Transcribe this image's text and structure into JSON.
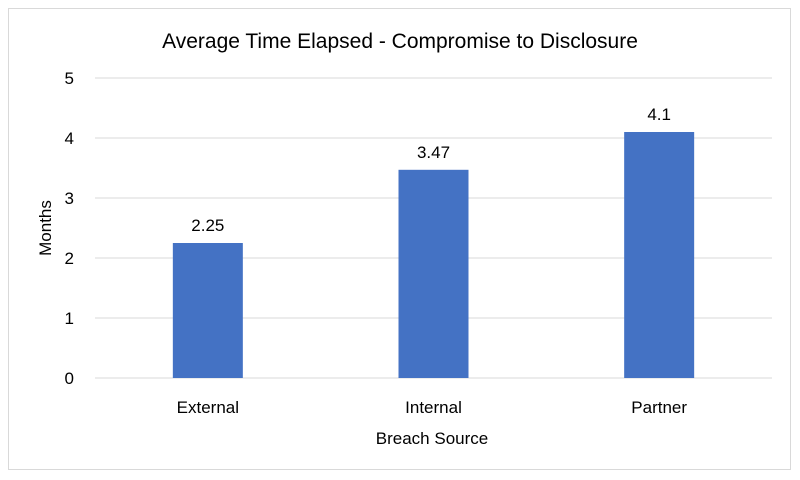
{
  "chart_data": {
    "type": "bar",
    "title": "Average Time Elapsed -  Compromise to Disclosure",
    "xlabel": "Breach Source",
    "ylabel": "Months",
    "categories": [
      "External",
      "Internal",
      "Partner"
    ],
    "values": [
      2.25,
      3.47,
      4.1
    ],
    "data_labels": [
      "2.25",
      "3.47",
      "4.1"
    ],
    "ylim": [
      0,
      5
    ],
    "yticks": [
      0,
      1,
      2,
      3,
      4,
      5
    ],
    "grid": true,
    "legend": "none",
    "bar_color": "#4472c4"
  }
}
